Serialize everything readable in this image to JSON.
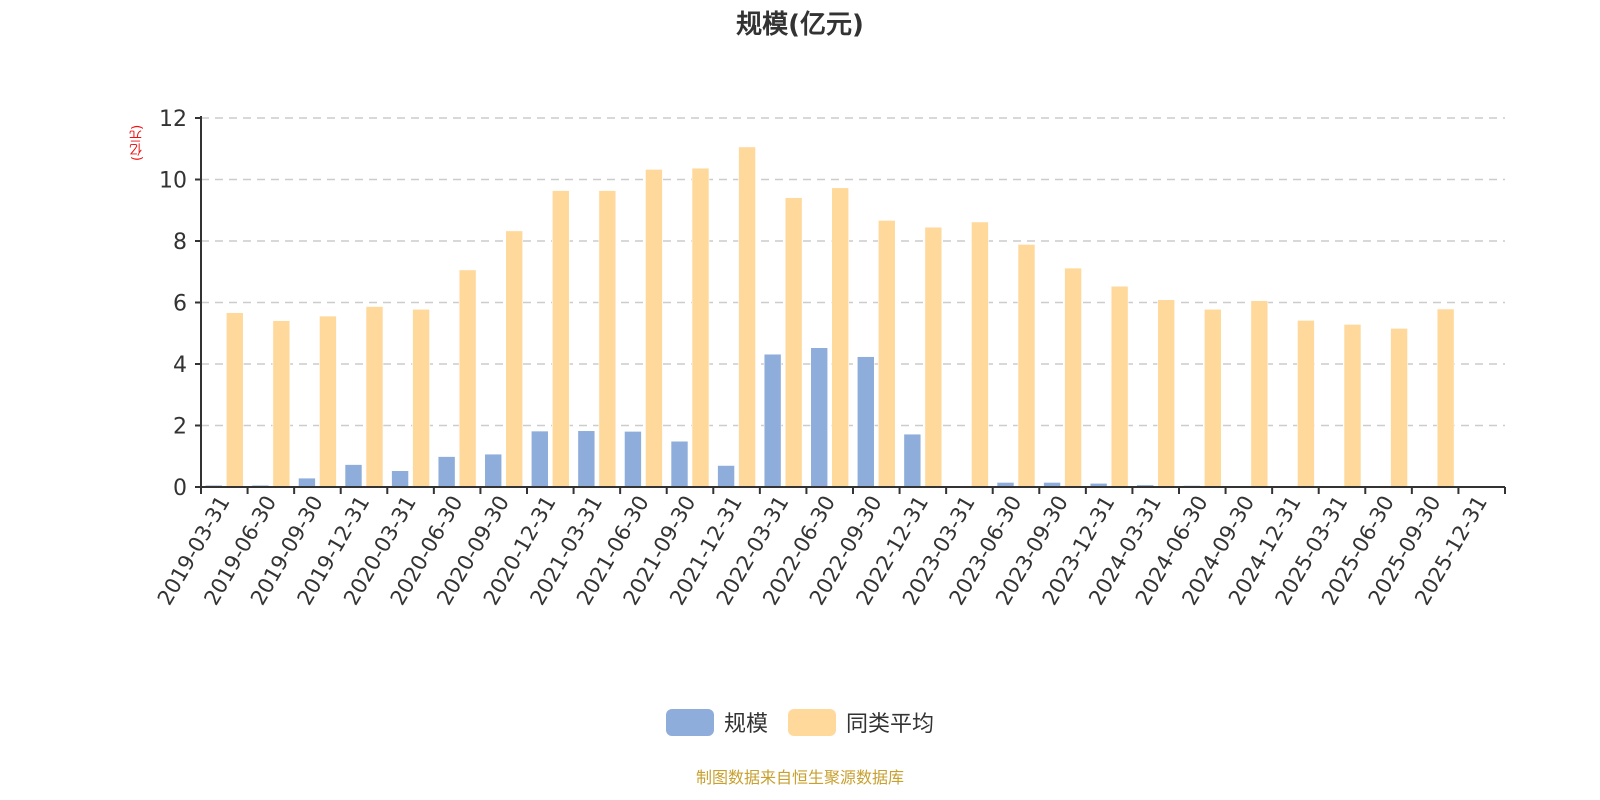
{
  "title": "规模(亿元)",
  "y_unit_label": "(亿元)",
  "footer": "制图数据来自恒生聚源数据库",
  "legend": [
    {
      "label": "规模",
      "color": "#8eadda"
    },
    {
      "label": "同类平均",
      "color": "#ffd99c"
    }
  ],
  "colors": {
    "scale": "#8eadda",
    "peer_avg": "#ffd99c",
    "axis": "#333333",
    "grid": "#cccccc",
    "unit": "#ee1111",
    "footer": "#c8a030"
  },
  "chart_data": {
    "type": "bar",
    "title": "规模(亿元)",
    "xlabel": "",
    "ylabel": "(亿元)",
    "ylim": [
      0,
      12
    ],
    "yticks": [
      0,
      2,
      4,
      6,
      8,
      10,
      12
    ],
    "grid": true,
    "legend_position": "bottom",
    "categories": [
      "2019-03-31",
      "2019-06-30",
      "2019-09-30",
      "2019-12-31",
      "2020-03-31",
      "2020-06-30",
      "2020-09-30",
      "2020-12-31",
      "2021-03-31",
      "2021-06-30",
      "2021-09-30",
      "2021-12-31",
      "2022-03-31",
      "2022-06-30",
      "2022-09-30",
      "2022-12-31",
      "2023-03-31",
      "2023-06-30",
      "2023-09-30",
      "2023-12-31",
      "2024-03-31",
      "2024-06-30",
      "2024-09-30",
      "2024-12-31",
      "2025-03-31",
      "2025-06-30",
      "2025-09-30",
      "2025-12-31"
    ],
    "series": [
      {
        "name": "规模",
        "values": [
          0.06,
          0.06,
          0.29,
          0.73,
          0.53,
          0.99,
          1.07,
          1.82,
          1.83,
          1.81,
          1.49,
          0.7,
          4.32,
          4.53,
          4.24,
          1.72,
          0.02,
          0.15,
          0.15,
          0.12,
          0.07,
          0.05,
          0.04,
          0.03,
          0.03,
          0.03,
          0.03,
          0.03
        ]
      },
      {
        "name": "同类平均",
        "values": [
          5.67,
          5.41,
          5.56,
          5.87,
          5.78,
          7.06,
          8.33,
          9.64,
          9.64,
          10.33,
          10.37,
          11.06,
          9.41,
          9.73,
          8.67,
          8.45,
          8.62,
          7.89,
          7.12,
          6.53,
          6.09,
          5.78,
          6.06,
          5.42,
          5.29,
          5.16,
          5.79,
          null
        ]
      }
    ]
  }
}
